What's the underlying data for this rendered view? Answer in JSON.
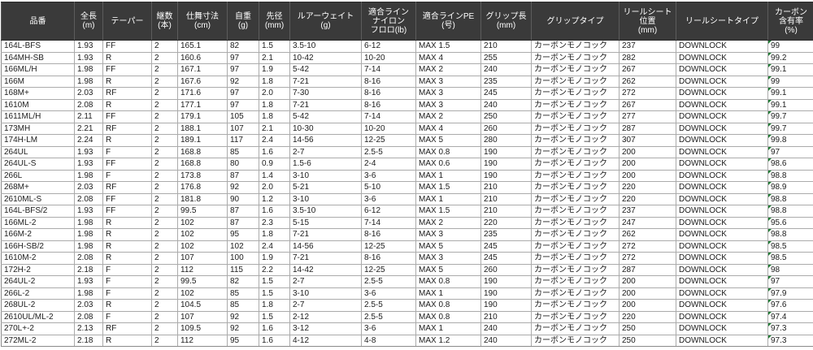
{
  "colors": {
    "header_bg": "#3a3a3a",
    "header_text": "#ffffff",
    "grid_line": "#ababab",
    "cell_text": "#1c1c1c",
    "error_triangle_green": "#1f7a33"
  },
  "icons": {
    "error_triangle": "excel-error-indicator-triangle"
  },
  "table": {
    "columns": [
      {
        "label": "品番"
      },
      {
        "label": "全長\n(m)"
      },
      {
        "label": "テーパー"
      },
      {
        "label": "継数\n(本)"
      },
      {
        "label": "仕舞寸法\n(cm)"
      },
      {
        "label": "自重\n(g)"
      },
      {
        "label": "先径\n(mm)"
      },
      {
        "label": "ルアーウェイト\n(g)"
      },
      {
        "label": "適合ライン\nナイロン\nフロロ(lb)"
      },
      {
        "label": "適合ラインPE\n(号)"
      },
      {
        "label": "グリップ長\n(mm)"
      },
      {
        "label": "グリップタイプ"
      },
      {
        "label": "リールシート\n位置\n(mm)"
      },
      {
        "label": "リールシートタイプ"
      },
      {
        "label": "カーボン\n含有率\n(%)"
      }
    ],
    "rows": [
      [
        "164L-BFS",
        "1.93",
        "FF",
        "2",
        "165.1",
        "82",
        "1.5",
        "3.5-10",
        "6-12",
        "MAX 1.5",
        "210",
        "カーボンモノコック",
        "237",
        "DOWNLOCK",
        "99"
      ],
      [
        "164MH-SB",
        "1.93",
        "R",
        "2",
        "160.6",
        "97",
        "2.1",
        "10-42",
        "10-20",
        "MAX 4",
        "255",
        "カーボンモノコック",
        "282",
        "DOWNLOCK",
        "99.2"
      ],
      [
        "166ML/H",
        "1.98",
        "FF",
        "2",
        "167.1",
        "97",
        "1.9",
        "5-42",
        "7-14",
        "MAX 2",
        "240",
        "カーボンモノコック",
        "267",
        "DOWNLOCK",
        "99.1"
      ],
      [
        "166M",
        "1.98",
        "R",
        "2",
        "167.6",
        "92",
        "1.8",
        "7-21",
        "8-16",
        "MAX 3",
        "235",
        "カーボンモノコック",
        "262",
        "DOWNLOCK",
        "99"
      ],
      [
        "168M+",
        "2.03",
        "RF",
        "2",
        "171.6",
        "97",
        "2.0",
        "7-30",
        "8-16",
        "MAX 3",
        "245",
        "カーボンモノコック",
        "272",
        "DOWNLOCK",
        "99.1"
      ],
      [
        "1610M",
        "2.08",
        "R",
        "2",
        "177.1",
        "97",
        "1.8",
        "7-21",
        "8-16",
        "MAX 3",
        "240",
        "カーボンモノコック",
        "267",
        "DOWNLOCK",
        "99.1"
      ],
      [
        "1611ML/H",
        "2.11",
        "FF",
        "2",
        "179.1",
        "105",
        "1.8",
        "5-42",
        "7-14",
        "MAX 2",
        "250",
        "カーボンモノコック",
        "277",
        "DOWNLOCK",
        "99.7"
      ],
      [
        "173MH",
        "2.21",
        "RF",
        "2",
        "188.1",
        "107",
        "2.1",
        "10-30",
        "10-20",
        "MAX 4",
        "260",
        "カーボンモノコック",
        "287",
        "DOWNLOCK",
        "99.7"
      ],
      [
        "174H-LM",
        "2.24",
        "R",
        "2",
        "189.1",
        "117",
        "2.4",
        "14-56",
        "12-25",
        "MAX 5",
        "280",
        "カーボンモノコック",
        "307",
        "DOWNLOCK",
        "99.8"
      ],
      [
        "264UL",
        "1.93",
        "F",
        "2",
        "168.8",
        "85",
        "1.6",
        "2-7",
        "2.5-5",
        "MAX 0.8",
        "190",
        "カーボンモノコック",
        "200",
        "DOWNLOCK",
        "97"
      ],
      [
        "264UL-S",
        "1.93",
        "FF",
        "2",
        "168.8",
        "80",
        "0.9",
        "1.5-6",
        "2-4",
        "MAX 0.6",
        "190",
        "カーボンモノコック",
        "200",
        "DOWNLOCK",
        "98.6"
      ],
      [
        "266L",
        "1.98",
        "F",
        "2",
        "173.8",
        "87",
        "1.4",
        "3-10",
        "3-6",
        "MAX 1",
        "190",
        "カーボンモノコック",
        "200",
        "DOWNLOCK",
        "98.8"
      ],
      [
        "268M+",
        "2.03",
        "RF",
        "2",
        "176.8",
        "92",
        "2.0",
        "5-21",
        "5-10",
        "MAX 1.5",
        "210",
        "カーボンモノコック",
        "220",
        "DOWNLOCK",
        "98.9"
      ],
      [
        "2610ML-S",
        "2.08",
        "FF",
        "2",
        "181.8",
        "90",
        "1.2",
        "3-10",
        "3-6",
        "MAX 1",
        "210",
        "カーボンモノコック",
        "220",
        "DOWNLOCK",
        "98.8"
      ],
      [
        "164L-BFS/2",
        "1.93",
        "FF",
        "2",
        "99.5",
        "87",
        "1.6",
        "3.5-10",
        "6-12",
        "MAX 1.5",
        "210",
        "カーボンモノコック",
        "237",
        "DOWNLOCK",
        "98.8"
      ],
      [
        "166ML-2",
        "1.98",
        "R",
        "2",
        "102",
        "87",
        "2.3",
        "5-15",
        "7-14",
        "MAX 2",
        "220",
        "カーボンモノコック",
        "247",
        "DOWNLOCK",
        "95.6"
      ],
      [
        "166M-2",
        "1.98",
        "R",
        "2",
        "102",
        "95",
        "1.8",
        "7-21",
        "8-16",
        "MAX 3",
        "235",
        "カーボンモノコック",
        "262",
        "DOWNLOCK",
        "98.8"
      ],
      [
        "166H-SB/2",
        "1.98",
        "R",
        "2",
        "102",
        "102",
        "2.4",
        "14-56",
        "12-25",
        "MAX 5",
        "245",
        "カーボンモノコック",
        "272",
        "DOWNLOCK",
        "98.5"
      ],
      [
        "1610M-2",
        "2.08",
        "R",
        "2",
        "107",
        "100",
        "1.9",
        "7-21",
        "8-16",
        "MAX 3",
        "245",
        "カーボンモノコック",
        "272",
        "DOWNLOCK",
        "98.5"
      ],
      [
        "172H-2",
        "2.18",
        "F",
        "2",
        "112",
        "115",
        "2.2",
        "14-42",
        "12-25",
        "MAX 5",
        "260",
        "カーボンモノコック",
        "287",
        "DOWNLOCK",
        "98"
      ],
      [
        "264UL-2",
        "1.93",
        "F",
        "2",
        "99.5",
        "82",
        "1.5",
        "2-7",
        "2.5-5",
        "MAX 0.8",
        "190",
        "カーボンモノコック",
        "200",
        "DOWNLOCK",
        "97"
      ],
      [
        "266L-2",
        "1.98",
        "F",
        "2",
        "102",
        "85",
        "1.5",
        "3-10",
        "3-6",
        "MAX 1",
        "190",
        "カーボンモノコック",
        "200",
        "DOWNLOCK",
        "97.9"
      ],
      [
        "268UL-2",
        "2.03",
        "R",
        "2",
        "104.5",
        "85",
        "1.8",
        "2-7",
        "2.5-5",
        "MAX 0.8",
        "190",
        "カーボンモノコック",
        "200",
        "DOWNLOCK",
        "97.6"
      ],
      [
        "2610UL/ML-2",
        "2.08",
        "F",
        "2",
        "107",
        "92",
        "1.5",
        "2-12",
        "2.5-5",
        "MAX 0.8",
        "210",
        "カーボンモノコック",
        "220",
        "DOWNLOCK",
        "97.4"
      ],
      [
        "270L+-2",
        "2.13",
        "RF",
        "2",
        "109.5",
        "92",
        "1.6",
        "3-12",
        "3-6",
        "MAX 1",
        "240",
        "カーボンモノコック",
        "250",
        "DOWNLOCK",
        "97.3"
      ],
      [
        "272ML-2",
        "2.18",
        "R",
        "2",
        "112",
        "95",
        "1.6",
        "4-12",
        "4-8",
        "MAX 1.2",
        "240",
        "カーボンモノコック",
        "250",
        "DOWNLOCK",
        "97.3"
      ]
    ]
  }
}
